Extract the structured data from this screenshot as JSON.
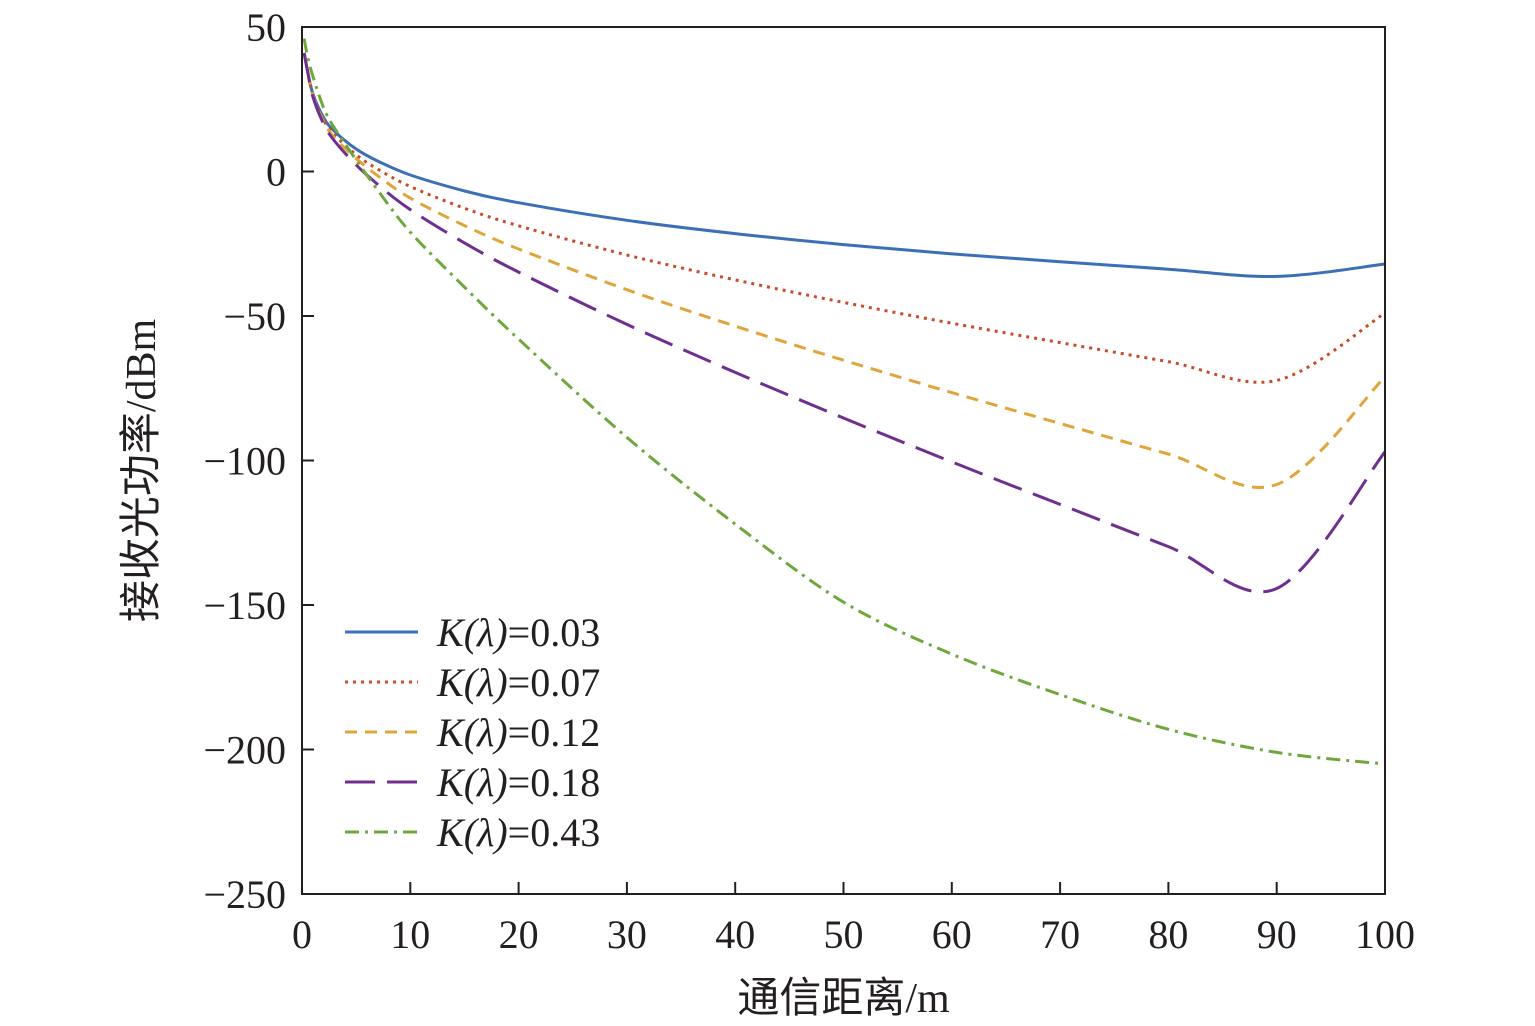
{
  "chart_data": {
    "type": "line",
    "title": "",
    "xlabel": "通信距离/m",
    "ylabel": "接收光功率/dBm",
    "xlim": [
      0,
      100
    ],
    "ylim": [
      -250,
      50
    ],
    "xticks": [
      0,
      10,
      20,
      30,
      40,
      50,
      60,
      70,
      80,
      90,
      100
    ],
    "yticks": [
      50,
      0,
      -50,
      -100,
      -150,
      -200,
      -250
    ],
    "ytick_labels": [
      "50",
      "0",
      "−50",
      "−100",
      "−150",
      "−200",
      "−250"
    ],
    "grid": false,
    "legend_position": "bottom-left",
    "x": [
      0.5,
      1,
      2,
      3,
      5,
      7,
      10,
      15,
      20,
      30,
      40,
      50,
      60,
      70,
      80,
      90,
      100
    ],
    "series": [
      {
        "name": "K(λ)=0.03",
        "legend_prefix": "K",
        "legend_paren": "(λ)",
        "legend_value": "=0.03",
        "color": "#3c6fb5",
        "dash": "",
        "values": [
          35,
          27,
          18.6,
          13.9,
          7.8,
          3.6,
          -1.2,
          -6.7,
          -10.8,
          -16.9,
          -21.5,
          -25.3,
          -28.5,
          -31.2,
          -33.8,
          -36.3,
          -32
        ]
      },
      {
        "name": "K(λ)=0.07",
        "legend_prefix": "K",
        "legend_paren": "(λ)",
        "legend_value": "=0.07",
        "color": "#cc4a26",
        "dash": "3 5",
        "values": [
          35,
          26.6,
          17.8,
          12.7,
          5.8,
          0.8,
          -5.2,
          -12.7,
          -18.8,
          -28.9,
          -37.5,
          -45.3,
          -52.5,
          -59.2,
          -65.8,
          -72.3,
          -49
        ]
      },
      {
        "name": "K(λ)=0.12",
        "legend_prefix": "K",
        "legend_paren": "(λ)",
        "legend_value": "=0.12",
        "color": "#e0a53a",
        "dash": "12 8",
        "values": [
          35,
          26.3,
          17.2,
          11.7,
          4.5,
          -1.5,
          -9.2,
          -18.7,
          -26.8,
          -40.9,
          -53.5,
          -65.3,
          -76.5,
          -87.2,
          -97.8,
          -108.3,
          -71
        ]
      },
      {
        "name": "K(λ)=0.18",
        "legend_prefix": "K",
        "legend_paren": "(λ)",
        "legend_value": "=0.18",
        "color": "#6e2f8f",
        "dash": "30 12",
        "values": [
          35,
          26,
          16.4,
          10.6,
          2.3,
          -4.5,
          -13.2,
          -24.7,
          -34.8,
          -52.9,
          -69.5,
          -85.3,
          -100.5,
          -115.2,
          -129.8,
          -144.3,
          -97
        ]
      },
      {
        "name": "K(λ)=0.43",
        "legend_prefix": "K",
        "legend_paren": "(λ)",
        "legend_value": "=0.43",
        "color": "#6ea83c",
        "dash": "14 6 3 6",
        "values": [
          40,
          33,
          22,
          15,
          4,
          -6.5,
          -21,
          -40,
          -58,
          -92,
          -122,
          -149,
          -167,
          -181,
          -193,
          -201,
          -205
        ]
      }
    ]
  }
}
